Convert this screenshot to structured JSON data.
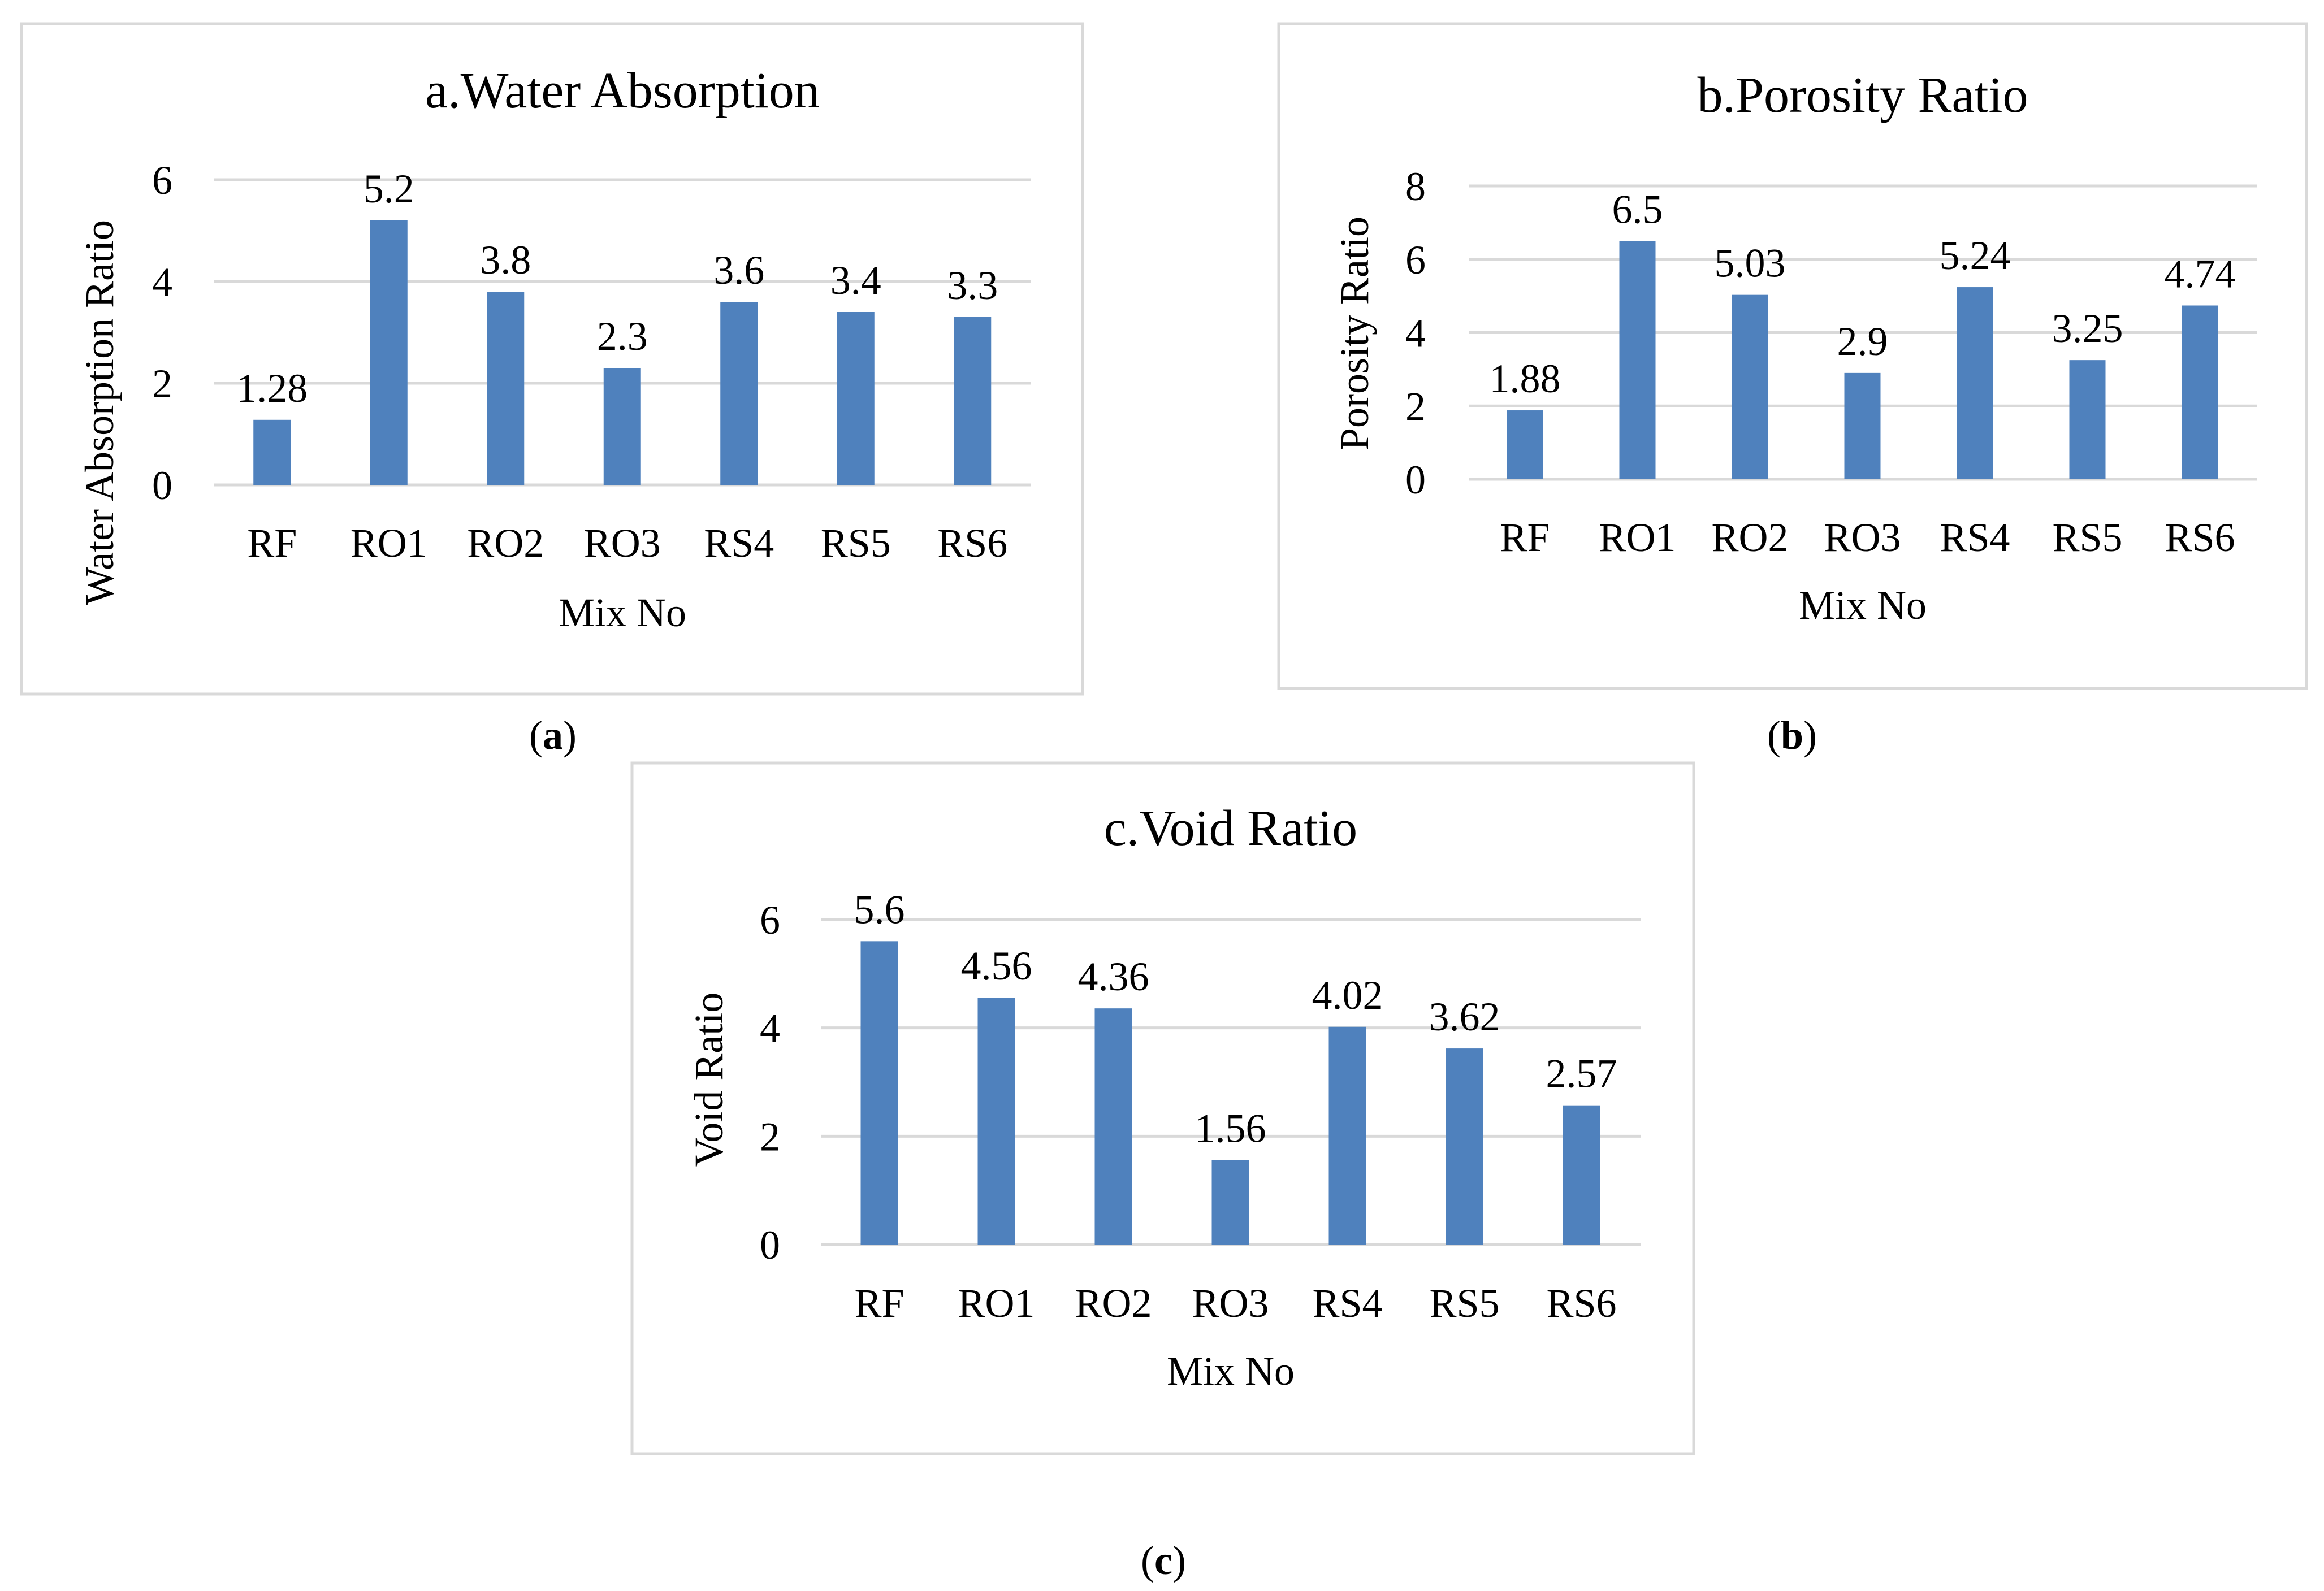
{
  "chart_data": [
    {
      "type": "bar",
      "title": "a.Water Absorption",
      "xlabel": "Mix No",
      "ylabel": "Water Absorption Ratio",
      "categories": [
        "RF",
        "RO1",
        "RO2",
        "RO3",
        "RS4",
        "RS5",
        "RS6"
      ],
      "values": [
        1.28,
        5.2,
        3.8,
        2.3,
        3.6,
        3.4,
        3.3
      ],
      "value_labels": [
        "1.28",
        "5.2",
        "3.8",
        "2.3",
        "3.6",
        "3.4",
        "3.3"
      ],
      "ylim": [
        0,
        6
      ],
      "yticks": [
        0,
        2,
        4,
        6
      ],
      "grid": true,
      "color": "#4f81bd",
      "panel_label": "a"
    },
    {
      "type": "bar",
      "title": "b.Porosity Ratio",
      "xlabel": "Mix No",
      "ylabel": "Porosity Ratio",
      "categories": [
        "RF",
        "RO1",
        "RO2",
        "RO3",
        "RS4",
        "RS5",
        "RS6"
      ],
      "values": [
        1.88,
        6.5,
        5.03,
        2.9,
        5.24,
        3.25,
        4.74
      ],
      "value_labels": [
        "1.88",
        "6.5",
        "5.03",
        "2.9",
        "5.24",
        "3.25",
        "4.74"
      ],
      "ylim": [
        0,
        8
      ],
      "yticks": [
        0,
        2,
        4,
        6,
        8
      ],
      "grid": true,
      "color": "#4f81bd",
      "panel_label": "b"
    },
    {
      "type": "bar",
      "title": "c.Void Ratio",
      "xlabel": "Mix No",
      "ylabel": "Void Ratio",
      "categories": [
        "RF",
        "RO1",
        "RO2",
        "RO3",
        "RS4",
        "RS5",
        "RS6"
      ],
      "values": [
        5.6,
        4.56,
        4.36,
        1.56,
        4.02,
        3.62,
        2.57
      ],
      "value_labels": [
        "5.6",
        "4.56",
        "4.36",
        "1.56",
        "4.02",
        "3.62",
        "2.57"
      ],
      "ylim": [
        0,
        6
      ],
      "yticks": [
        0,
        2,
        4,
        6
      ],
      "grid": true,
      "color": "#4f81bd",
      "panel_label": "c"
    }
  ]
}
